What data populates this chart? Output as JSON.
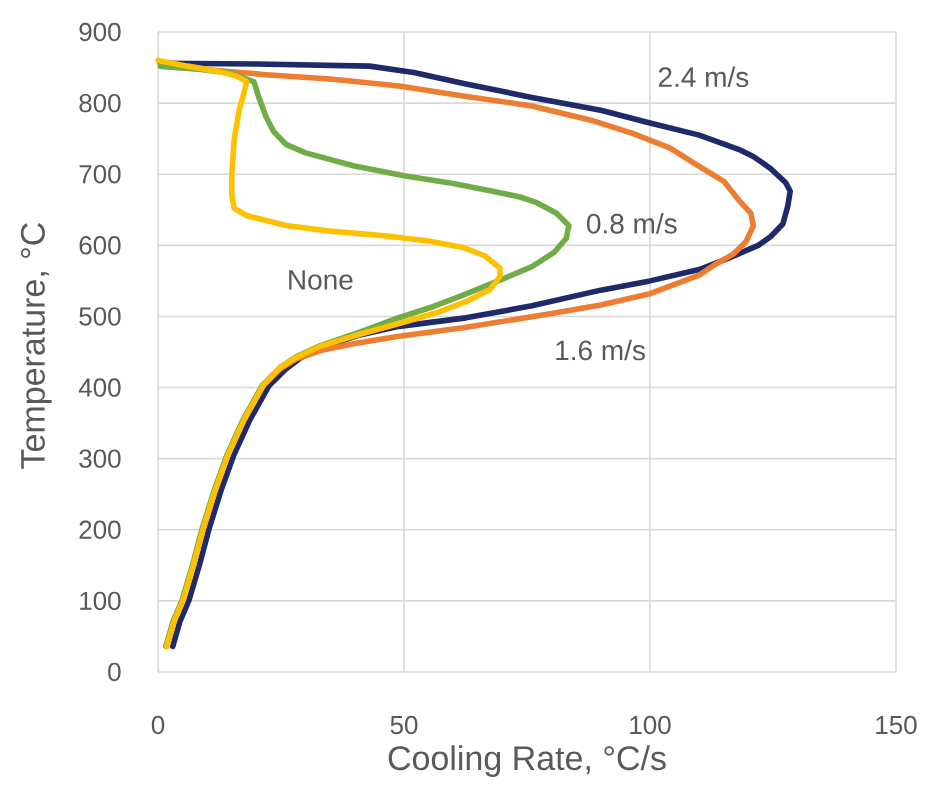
{
  "chart_data": {
    "type": "line",
    "xlabel": "Cooling Rate, °C/s",
    "ylabel": "Temperature, °C",
    "xlim": [
      0,
      150
    ],
    "xticks": [
      0,
      50,
      100,
      150
    ],
    "ylim": [
      0,
      900
    ],
    "yticks": [
      0,
      100,
      200,
      300,
      400,
      500,
      600,
      700,
      800,
      900
    ],
    "grid": true,
    "line_style": "solid",
    "series": [
      {
        "name": "2.4 m/s",
        "color": "#1f2a6b",
        "x": [
          0.5,
          20,
          43,
          52,
          62.6,
          76,
          90,
          100,
          110,
          118,
          121,
          124.5,
          127.6,
          128.5,
          128,
          127,
          124.5,
          122,
          116,
          110,
          100,
          90,
          76,
          62.6,
          49,
          41,
          34,
          29,
          26,
          22.6,
          18.7,
          15.4,
          12.8,
          10.4,
          8.4,
          6.3,
          4.4,
          3
        ],
        "values": [
          856,
          855,
          852,
          843,
          827,
          808,
          790,
          772,
          755,
          735,
          725,
          708,
          688,
          676,
          655,
          630,
          612,
          600,
          582,
          566,
          550,
          537,
          515,
          498,
          486,
          474,
          458,
          442,
          426,
          403,
          355,
          305,
          255,
          202,
          150,
          101,
          70,
          36
        ]
      },
      {
        "name": "1.6 m/s",
        "color": "#ed7d31",
        "x": [
          0.5,
          10,
          22,
          35,
          49,
          62,
          76,
          88,
          96.6,
          104,
          110,
          115,
          118,
          120.5,
          121,
          119.5,
          117,
          113,
          110,
          100,
          90,
          80,
          62,
          49,
          40,
          33,
          28,
          24.8,
          21.4,
          17.5,
          14.2,
          11.6,
          9.2,
          7.2,
          5.1,
          3.2,
          1.8
        ],
        "values": [
          852,
          847,
          840,
          834,
          824,
          810,
          796,
          776,
          757,
          737,
          711,
          690,
          664,
          645,
          627,
          605,
          588,
          572,
          558,
          532,
          516,
          504,
          484,
          472,
          462,
          452,
          440,
          426,
          403,
          355,
          305,
          255,
          202,
          150,
          101,
          70,
          36
        ]
      },
      {
        "name": "0.8 m/s",
        "color": "#70ad47",
        "x": [
          0.5,
          8,
          15,
          19.5,
          20.5,
          22,
          23.5,
          26,
          30,
          39.7,
          50,
          60,
          68,
          73.6,
          77,
          81,
          83.5,
          83,
          80.5,
          76,
          69.5,
          62,
          56,
          48,
          41,
          33,
          28,
          24.8,
          21.2,
          17.3,
          14,
          11.4,
          9,
          7,
          4.9,
          3,
          1.6
        ],
        "values": [
          852,
          848,
          842,
          830,
          808,
          780,
          760,
          742,
          730,
          712,
          698,
          687,
          676,
          668,
          660,
          645,
          628,
          610,
          590,
          570,
          551,
          530,
          514,
          496,
          478,
          459,
          443,
          428,
          403,
          355,
          305,
          255,
          202,
          150,
          101,
          70,
          36
        ]
      },
      {
        "name": "None",
        "color": "#ffc000",
        "x": [
          0,
          6,
          12,
          16,
          18,
          17.5,
          16.5,
          15.5,
          15,
          15,
          15.5,
          18,
          26,
          35,
          46.5,
          55,
          62,
          66.5,
          69.5,
          69.5,
          67.5,
          63,
          57,
          49,
          41,
          33,
          28,
          24.8,
          21.4,
          17.5,
          14.2,
          11.6,
          9.2,
          7.2,
          5.1,
          3.2,
          1.8
        ],
        "values": [
          860,
          852,
          845,
          838,
          830,
          815,
          790,
          750,
          700,
          670,
          652,
          642,
          628,
          620,
          613,
          606,
          597,
          585,
          568,
          556,
          538,
          522,
          506,
          490,
          475,
          458,
          442,
          428,
          403,
          355,
          305,
          255,
          202,
          150,
          101,
          70,
          36
        ]
      }
    ]
  }
}
